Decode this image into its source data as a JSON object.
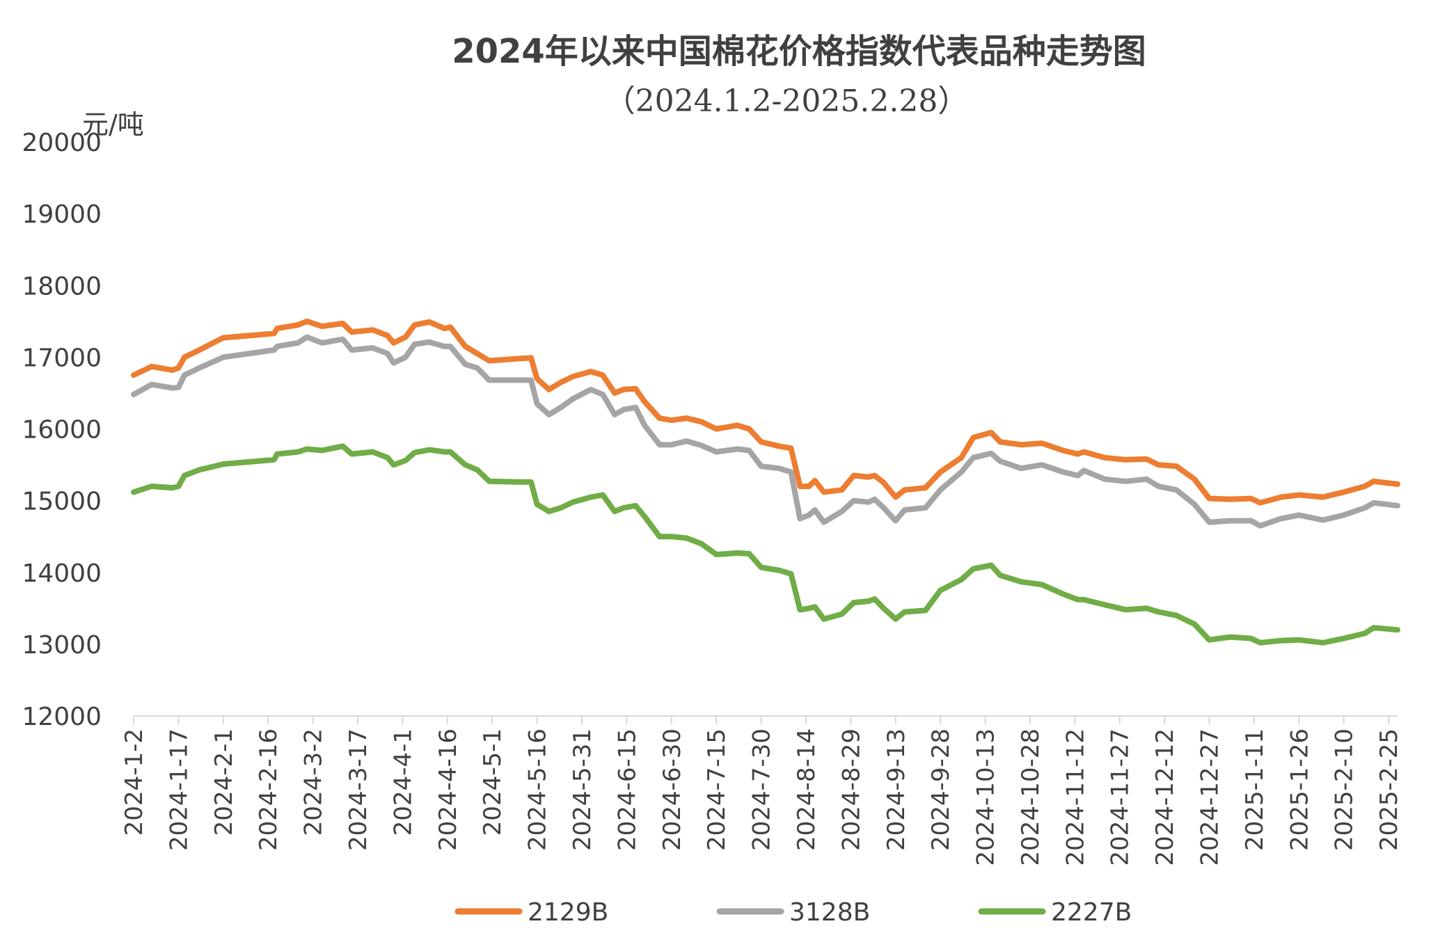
{
  "chart_data": {
    "type": "line",
    "title": "2024年以来中国棉花价格指数代表品种走势图",
    "subtitle": "（2024.1.2-2025.2.28）",
    "ylabel": "元/吨",
    "xlabel": "",
    "ylim": [
      12000,
      20000
    ],
    "yticks": [
      12000,
      13000,
      14000,
      15000,
      16000,
      17000,
      18000,
      19000,
      20000
    ],
    "xlim": [
      "2024-01-02",
      "2025-02-28"
    ],
    "xticks": [
      "2024-1-2",
      "2024-1-17",
      "2024-2-1",
      "2024-2-16",
      "2024-3-2",
      "2024-3-17",
      "2024-4-1",
      "2024-4-16",
      "2024-5-1",
      "2024-5-16",
      "2024-5-31",
      "2024-6-15",
      "2024-6-30",
      "2024-7-15",
      "2024-7-30",
      "2024-8-14",
      "2024-8-29",
      "2024-9-13",
      "2024-9-28",
      "2024-10-13",
      "2024-10-28",
      "2024-11-12",
      "2024-11-27",
      "2024-12-12",
      "2024-12-27",
      "2025-1-11",
      "2025-1-26",
      "2025-2-10",
      "2025-2-25"
    ],
    "grid": false,
    "legend_position": "bottom",
    "x": [
      "2024-01-02",
      "2024-01-08",
      "2024-01-15",
      "2024-01-17",
      "2024-01-19",
      "2024-01-24",
      "2024-01-31",
      "2024-02-01",
      "2024-02-18",
      "2024-02-19",
      "2024-02-26",
      "2024-02-29",
      "2024-03-05",
      "2024-03-12",
      "2024-03-15",
      "2024-03-22",
      "2024-03-27",
      "2024-03-29",
      "2024-04-02",
      "2024-04-05",
      "2024-04-10",
      "2024-04-15",
      "2024-04-17",
      "2024-04-22",
      "2024-04-26",
      "2024-04-30",
      "2024-05-10",
      "2024-05-14",
      "2024-05-16",
      "2024-05-20",
      "2024-05-24",
      "2024-05-28",
      "2024-06-03",
      "2024-06-07",
      "2024-06-11",
      "2024-06-14",
      "2024-06-18",
      "2024-06-21",
      "2024-06-26",
      "2024-06-30",
      "2024-07-05",
      "2024-07-10",
      "2024-07-15",
      "2024-07-22",
      "2024-07-26",
      "2024-07-30",
      "2024-08-05",
      "2024-08-09",
      "2024-08-12",
      "2024-08-15",
      "2024-08-17",
      "2024-08-20",
      "2024-08-26",
      "2024-08-30",
      "2024-09-04",
      "2024-09-06",
      "2024-09-09",
      "2024-09-13",
      "2024-09-16",
      "2024-09-23",
      "2024-09-28",
      "2024-10-05",
      "2024-10-09",
      "2024-10-15",
      "2024-10-18",
      "2024-10-25",
      "2024-11-01",
      "2024-11-08",
      "2024-11-13",
      "2024-11-15",
      "2024-11-22",
      "2024-11-29",
      "2024-12-06",
      "2024-12-10",
      "2024-12-16",
      "2024-12-22",
      "2024-12-27",
      "2025-01-03",
      "2025-01-10",
      "2025-01-13",
      "2025-01-20",
      "2025-01-26",
      "2025-02-03",
      "2025-02-10",
      "2025-02-17",
      "2025-02-20",
      "2025-02-28"
    ],
    "series": [
      {
        "name": "2129B",
        "color": "#ED7D31",
        "values": [
          16750,
          16870,
          16820,
          16850,
          17000,
          17100,
          17250,
          17270,
          17330,
          17400,
          17450,
          17500,
          17430,
          17470,
          17350,
          17380,
          17300,
          17200,
          17280,
          17450,
          17490,
          17400,
          17420,
          17150,
          17050,
          16950,
          16980,
          16990,
          16700,
          16550,
          16650,
          16730,
          16800,
          16750,
          16500,
          16550,
          16560,
          16380,
          16150,
          16120,
          16150,
          16100,
          16000,
          16050,
          16000,
          15820,
          15760,
          15730,
          15200,
          15200,
          15280,
          15120,
          15150,
          15350,
          15330,
          15350,
          15250,
          15050,
          15150,
          15180,
          15400,
          15600,
          15880,
          15950,
          15820,
          15780,
          15800,
          15700,
          15650,
          15680,
          15600,
          15570,
          15580,
          15500,
          15480,
          15300,
          15030,
          15020,
          15030,
          14970,
          15050,
          15080,
          15050,
          15120,
          15200,
          15270,
          15230
        ]
      },
      {
        "name": "3128B",
        "color": "#A5A5A5",
        "values": [
          16480,
          16620,
          16570,
          16580,
          16750,
          16850,
          16980,
          17000,
          17100,
          17150,
          17200,
          17280,
          17200,
          17250,
          17100,
          17130,
          17050,
          16920,
          17000,
          17180,
          17210,
          17150,
          17150,
          16900,
          16850,
          16680,
          16680,
          16680,
          16350,
          16200,
          16300,
          16420,
          16550,
          16480,
          16200,
          16270,
          16300,
          16050,
          15780,
          15780,
          15830,
          15770,
          15680,
          15720,
          15700,
          15480,
          15450,
          15400,
          14750,
          14800,
          14870,
          14700,
          14850,
          15000,
          14980,
          15020,
          14900,
          14720,
          14870,
          14900,
          15150,
          15400,
          15600,
          15660,
          15550,
          15450,
          15500,
          15400,
          15350,
          15420,
          15300,
          15270,
          15300,
          15200,
          15150,
          14950,
          14700,
          14720,
          14720,
          14650,
          14750,
          14800,
          14730,
          14800,
          14900,
          14970,
          14930
        ]
      },
      {
        "name": "2227B",
        "color": "#70AD47",
        "values": [
          15120,
          15200,
          15180,
          15200,
          15350,
          15430,
          15500,
          15510,
          15570,
          15650,
          15680,
          15720,
          15700,
          15760,
          15650,
          15680,
          15600,
          15500,
          15560,
          15670,
          15710,
          15680,
          15680,
          15500,
          15430,
          15270,
          15260,
          15260,
          14950,
          14850,
          14900,
          14980,
          15050,
          15080,
          14850,
          14900,
          14930,
          14780,
          14500,
          14500,
          14480,
          14400,
          14250,
          14270,
          14260,
          14070,
          14030,
          13980,
          13480,
          13500,
          13520,
          13350,
          13420,
          13580,
          13600,
          13630,
          13500,
          13350,
          13450,
          13470,
          13750,
          13900,
          14050,
          14100,
          13960,
          13870,
          13830,
          13700,
          13620,
          13620,
          13550,
          13480,
          13500,
          13450,
          13400,
          13280,
          13060,
          13100,
          13080,
          13020,
          13050,
          13060,
          13020,
          13080,
          13150,
          13230,
          13200
        ]
      }
    ]
  }
}
